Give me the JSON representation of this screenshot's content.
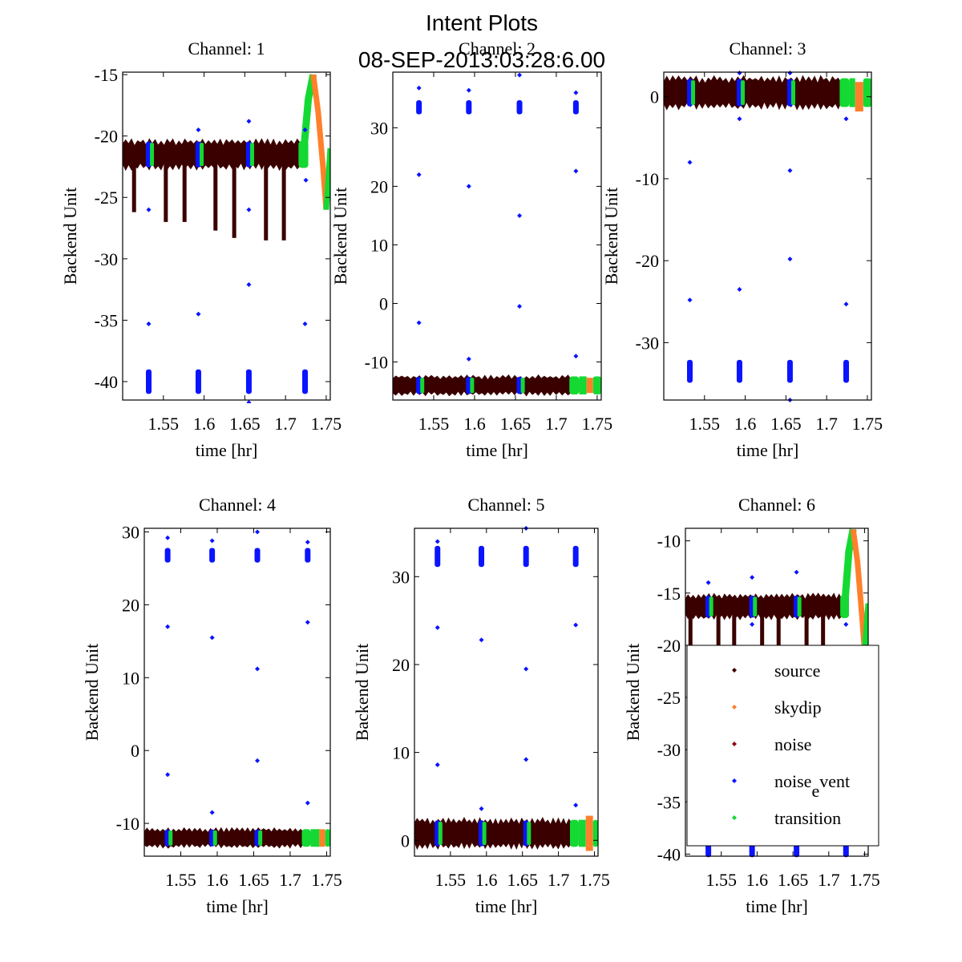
{
  "figure": {
    "title_line1": "Intent Plots",
    "title_line2": "08-SEP-2013:03:28:6.00"
  },
  "chart_data": {
    "type": "scatter",
    "title": "Intent Plots 08-SEP-2013:03:28:6.00",
    "xlabel": "time [hr]",
    "ylabel": "Backend Unit",
    "xlim": [
      1.5,
      1.755
    ],
    "xticks": [
      1.55,
      1.6,
      1.65,
      1.7,
      1.75
    ],
    "xtick_labels": [
      "1.55",
      "1.6",
      "1.65",
      "1.7",
      "1.75"
    ],
    "legend": {
      "placement": "lower-right of Channel 6",
      "entries": [
        {
          "label": "source",
          "color": "#3a0000"
        },
        {
          "label": "skydip",
          "color": "#ff7f2a"
        },
        {
          "label": "noise",
          "color": "#8b0a1a"
        },
        {
          "label": "noise_event",
          "label_display_base": "noise",
          "label_display_sub": "e",
          "label_display_rest": "vent",
          "color": "#0a14ff"
        },
        {
          "label": "transition",
          "color": "#14d932"
        }
      ]
    },
    "noise_event_times": [
      1.532,
      1.593,
      1.655,
      1.724
    ],
    "transition_times": [
      1.536,
      1.597,
      1.659
    ],
    "series_colors": {
      "source": "#3a0000",
      "skydip": "#ff7f2a",
      "noise": "#8b0a1a",
      "noise_event": "#0a14ff",
      "transition": "#14d932"
    },
    "panels": [
      {
        "title": "Channel: 1",
        "ylim": [
          -41.5,
          -14.8
        ],
        "yticks": [
          -40,
          -35,
          -30,
          -25,
          -20,
          -15
        ],
        "ytick_labels": [
          "-40",
          "-35",
          "-30",
          "-25",
          "-20",
          "-15"
        ],
        "baseline": {
          "center": -21.5,
          "half_width": 1.0
        },
        "dropouts": [
          {
            "x": 1.514,
            "min": -26.2
          },
          {
            "x": 1.553,
            "min": -27.0
          },
          {
            "x": 1.576,
            "min": -27.0
          },
          {
            "x": 1.614,
            "min": -27.7
          },
          {
            "x": 1.637,
            "min": -28.3
          },
          {
            "x": 1.676,
            "min": -28.5
          },
          {
            "x": 1.698,
            "min": -28.5
          }
        ],
        "noise_event_clusters": {
          "center": -40.0,
          "half_width": 1.0
        },
        "noise_event_outliers": [
          {
            "x": 1.532,
            "y": -35.3
          },
          {
            "x": 1.593,
            "y": -34.5
          },
          {
            "x": 1.655,
            "y": -32.1
          },
          {
            "x": 1.724,
            "y": -35.3
          },
          {
            "x": 1.532,
            "y": -26.0
          },
          {
            "x": 1.655,
            "y": -26.0
          },
          {
            "x": 1.724,
            "y": -19.5
          },
          {
            "x": 1.593,
            "y": -19.5
          },
          {
            "x": 1.655,
            "y": -18.8
          },
          {
            "x": 1.655,
            "y": -41.7
          },
          {
            "x": 1.725,
            "y": -23.6
          }
        ],
        "skydip_curve": [
          {
            "x": 1.716,
            "y": -21.5
          },
          {
            "x": 1.722,
            "y": -21.5
          },
          {
            "x": 1.728,
            "y": -17.0
          },
          {
            "x": 1.734,
            "y": -15.0
          },
          {
            "x": 1.74,
            "y": -18.0
          },
          {
            "x": 1.746,
            "y": -22.5
          },
          {
            "x": 1.75,
            "y": -26.0
          },
          {
            "x": 1.755,
            "y": -21.0
          }
        ]
      },
      {
        "title": "Channel: 2",
        "ylim": [
          -16.5,
          39.5
        ],
        "yticks": [
          -10,
          0,
          10,
          20,
          30
        ],
        "ytick_labels": [
          "-10",
          "0",
          "10",
          "20",
          "30"
        ],
        "baseline": {
          "center": -14.0,
          "half_width": 1.4
        },
        "dropouts": [],
        "noise_event_clusters": {
          "center": 33.5,
          "half_width": 1.2
        },
        "noise_event_outliers": [
          {
            "x": 1.532,
            "y": 22.0
          },
          {
            "x": 1.593,
            "y": 20.0
          },
          {
            "x": 1.655,
            "y": 15.0
          },
          {
            "x": 1.724,
            "y": 22.6
          },
          {
            "x": 1.532,
            "y": -3.3
          },
          {
            "x": 1.655,
            "y": -0.5
          },
          {
            "x": 1.593,
            "y": -9.5
          },
          {
            "x": 1.724,
            "y": -9.0
          },
          {
            "x": 1.532,
            "y": 36.8
          },
          {
            "x": 1.593,
            "y": 36.4
          },
          {
            "x": 1.655,
            "y": 39.0
          },
          {
            "x": 1.724,
            "y": 36.0
          }
        ],
        "skydip_band": {
          "x_start": 1.737,
          "x_end": 1.745,
          "center": -14.0,
          "half_width": 1.3
        }
      },
      {
        "title": "Channel: 3",
        "ylim": [
          -37,
          3
        ],
        "yticks": [
          -30,
          -20,
          -10,
          0
        ],
        "ytick_labels": [
          "-30",
          "-20",
          "-10",
          "0"
        ],
        "baseline": {
          "center": 0.5,
          "half_width": 1.6
        },
        "dropouts": [],
        "noise_event_clusters": {
          "center": -33.5,
          "half_width": 1.4
        },
        "noise_event_outliers": [
          {
            "x": 1.532,
            "y": -8.0
          },
          {
            "x": 1.655,
            "y": -9.0
          },
          {
            "x": 1.532,
            "y": -24.8
          },
          {
            "x": 1.593,
            "y": -23.5
          },
          {
            "x": 1.655,
            "y": -19.8
          },
          {
            "x": 1.724,
            "y": -25.3
          },
          {
            "x": 1.593,
            "y": -2.7
          },
          {
            "x": 1.724,
            "y": -2.7
          },
          {
            "x": 1.593,
            "y": 2.9
          },
          {
            "x": 1.655,
            "y": 2.9
          },
          {
            "x": 1.655,
            "y": -37.0
          }
        ],
        "skydip_band": {
          "x_start": 1.735,
          "x_end": 1.745,
          "center": 0.0,
          "half_width": 1.8
        }
      },
      {
        "title": "Channel: 4",
        "ylim": [
          -14.5,
          30.5
        ],
        "yticks": [
          -10,
          0,
          10,
          20,
          30
        ],
        "ytick_labels": [
          "-10",
          "0",
          "10",
          "20",
          "30"
        ],
        "baseline": {
          "center": -12.0,
          "half_width": 1.1
        },
        "dropouts": [],
        "noise_event_clusters": {
          "center": 26.8,
          "half_width": 1.0
        },
        "noise_event_outliers": [
          {
            "x": 1.532,
            "y": 17.0
          },
          {
            "x": 1.593,
            "y": 15.5
          },
          {
            "x": 1.655,
            "y": 11.2
          },
          {
            "x": 1.724,
            "y": 17.6
          },
          {
            "x": 1.532,
            "y": -3.3
          },
          {
            "x": 1.655,
            "y": -1.4
          },
          {
            "x": 1.593,
            "y": -8.5
          },
          {
            "x": 1.724,
            "y": -7.2
          },
          {
            "x": 1.532,
            "y": 29.2
          },
          {
            "x": 1.593,
            "y": 28.8
          },
          {
            "x": 1.655,
            "y": 30.0
          },
          {
            "x": 1.724,
            "y": 28.6
          }
        ],
        "skydip_band": {
          "x_start": 1.74,
          "x_end": 1.748,
          "center": -12.0,
          "half_width": 1.2
        }
      },
      {
        "title": "Channel: 5",
        "ylim": [
          -1.8,
          35.5
        ],
        "yticks": [
          0,
          10,
          20,
          30
        ],
        "ytick_labels": [
          "0",
          "10",
          "20",
          "30"
        ],
        "baseline": {
          "center": 0.8,
          "half_width": 1.4
        },
        "dropouts": [],
        "noise_event_clusters": {
          "center": 32.3,
          "half_width": 1.2
        },
        "noise_event_outliers": [
          {
            "x": 1.532,
            "y": 24.2
          },
          {
            "x": 1.593,
            "y": 22.8
          },
          {
            "x": 1.655,
            "y": 19.5
          },
          {
            "x": 1.724,
            "y": 24.5
          },
          {
            "x": 1.532,
            "y": 8.6
          },
          {
            "x": 1.655,
            "y": 9.2
          },
          {
            "x": 1.593,
            "y": 3.6
          },
          {
            "x": 1.724,
            "y": 4.0
          },
          {
            "x": 1.532,
            "y": 34.0
          },
          {
            "x": 1.655,
            "y": 35.5
          }
        ],
        "skydip_band": {
          "x_start": 1.738,
          "x_end": 1.748,
          "center": 0.8,
          "half_width": 2.0
        }
      },
      {
        "title": "Channel: 6",
        "ylim": [
          -40.2,
          -8.8
        ],
        "yticks": [
          -40,
          -35,
          -30,
          -25,
          -20,
          -15,
          -10
        ],
        "ytick_labels": [
          "-40",
          "-35",
          "-30",
          "-25",
          "-20",
          "-15",
          "-10"
        ],
        "baseline": {
          "center": -16.3,
          "half_width": 1.0
        },
        "dropouts": [
          {
            "x": 1.507,
            "min": -21.0
          },
          {
            "x": 1.546,
            "min": -21.0
          },
          {
            "x": 1.568,
            "min": -21.0
          },
          {
            "x": 1.607,
            "min": -21.0
          },
          {
            "x": 1.63,
            "min": -21.0
          },
          {
            "x": 1.669,
            "min": -21.0
          },
          {
            "x": 1.692,
            "min": -21.0
          }
        ],
        "noise_event_clusters": {
          "center": -39.5,
          "half_width": 0.8
        },
        "noise_event_outliers": [
          {
            "x": 1.532,
            "y": -14.0
          },
          {
            "x": 1.593,
            "y": -13.5
          },
          {
            "x": 1.655,
            "y": -13.0
          },
          {
            "x": 1.724,
            "y": -18.0
          },
          {
            "x": 1.593,
            "y": -18.0
          }
        ],
        "skydip_curve": [
          {
            "x": 1.716,
            "y": -16.3
          },
          {
            "x": 1.722,
            "y": -16.3
          },
          {
            "x": 1.728,
            "y": -11.0
          },
          {
            "x": 1.734,
            "y": -8.9
          },
          {
            "x": 1.74,
            "y": -12.0
          },
          {
            "x": 1.746,
            "y": -17.0
          },
          {
            "x": 1.75,
            "y": -20.5
          },
          {
            "x": 1.755,
            "y": -16.0
          }
        ],
        "has_legend": true
      }
    ]
  }
}
